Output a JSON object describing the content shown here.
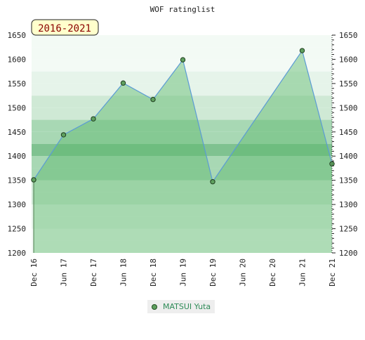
{
  "chart_data": {
    "type": "area",
    "title": "WOF ratinglist",
    "period_badge": "2016-2021",
    "xlabel": "",
    "ylabel": "",
    "ylim": [
      1200,
      1650
    ],
    "yticks": [
      1200,
      1250,
      1300,
      1350,
      1400,
      1450,
      1500,
      1550,
      1600,
      1650
    ],
    "x_tick_labels": [
      "Dec 16",
      "Jun 17",
      "Dec 17",
      "Jun 18",
      "Dec 18",
      "Jun 19",
      "Dec 19",
      "Jun 20",
      "Dec 20",
      "Jun 21",
      "Dec 21"
    ],
    "grid": true,
    "legend_position": "bottom-center",
    "series": [
      {
        "name": "MATSUI Yuta",
        "color": "#5b9bd5",
        "fill_color": "#5cb86a",
        "points": [
          {
            "x": "Dec 16",
            "y": 1351
          },
          {
            "x": "Jun 17",
            "y": 1444
          },
          {
            "x": "Dec 17",
            "y": 1477
          },
          {
            "x": "Jun 18",
            "y": 1551
          },
          {
            "x": "Dec 18",
            "y": 1517
          },
          {
            "x": "Jun 19",
            "y": 1599
          },
          {
            "x": "Dec 19",
            "y": 1347
          },
          {
            "x": "Jun 21",
            "y": 1618
          },
          {
            "x": "Dec 21",
            "y": 1384
          }
        ]
      }
    ]
  }
}
